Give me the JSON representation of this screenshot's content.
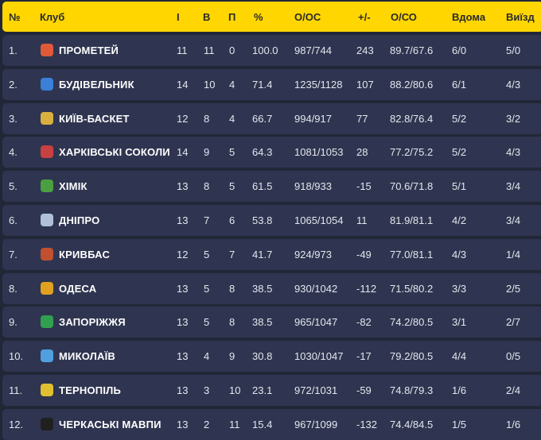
{
  "header": {
    "pos": "№",
    "club": "Клуб",
    "games": "І",
    "wins": "В",
    "losses": "П",
    "pct": "%",
    "points": "О/ОС",
    "diff": "+/-",
    "avg": "О/СО",
    "home": "Вдома",
    "away": "Виїзд"
  },
  "colors": {
    "header_bg": "#ffd600",
    "row_bg": "#2f3550",
    "page_bg": "#222737"
  },
  "rows": [
    {
      "pos": "1.",
      "club": "ПРОМЕТЕЙ",
      "games": "11",
      "wins": "11",
      "losses": "0",
      "pct": "100.0",
      "points": "987/744",
      "diff": "243",
      "avg": "89.7/67.6",
      "home": "6/0",
      "away": "5/0",
      "logo_color": "#e05a3a"
    },
    {
      "pos": "2.",
      "club": "БУДІВЕЛЬНИК",
      "games": "14",
      "wins": "10",
      "losses": "4",
      "pct": "71.4",
      "points": "1235/1128",
      "diff": "107",
      "avg": "88.2/80.6",
      "home": "6/1",
      "away": "4/3",
      "logo_color": "#3a7fd8"
    },
    {
      "pos": "3.",
      "club": "КИЇВ-БАСКЕТ",
      "games": "12",
      "wins": "8",
      "losses": "4",
      "pct": "66.7",
      "points": "994/917",
      "diff": "77",
      "avg": "82.8/76.4",
      "home": "5/2",
      "away": "3/2",
      "logo_color": "#d8b040"
    },
    {
      "pos": "4.",
      "club": "ХАРКІВСЬКІ СОКОЛИ",
      "games": "14",
      "wins": "9",
      "losses": "5",
      "pct": "64.3",
      "points": "1081/1053",
      "diff": "28",
      "avg": "77.2/75.2",
      "home": "5/2",
      "away": "4/3",
      "logo_color": "#c84040"
    },
    {
      "pos": "5.",
      "club": "ХІМІК",
      "games": "13",
      "wins": "8",
      "losses": "5",
      "pct": "61.5",
      "points": "918/933",
      "diff": "-15",
      "avg": "70.6/71.8",
      "home": "5/1",
      "away": "3/4",
      "logo_color": "#4aa040"
    },
    {
      "pos": "6.",
      "club": "ДНІПРО",
      "games": "13",
      "wins": "7",
      "losses": "6",
      "pct": "53.8",
      "points": "1065/1054",
      "diff": "11",
      "avg": "81.9/81.1",
      "home": "4/2",
      "away": "3/4",
      "logo_color": "#b0c0d8"
    },
    {
      "pos": "7.",
      "club": "КРИВБАС",
      "games": "12",
      "wins": "5",
      "losses": "7",
      "pct": "41.7",
      "points": "924/973",
      "diff": "-49",
      "avg": "77.0/81.1",
      "home": "4/3",
      "away": "1/4",
      "logo_color": "#c05030"
    },
    {
      "pos": "8.",
      "club": "ОДЕСА",
      "games": "13",
      "wins": "5",
      "losses": "8",
      "pct": "38.5",
      "points": "930/1042",
      "diff": "-112",
      "avg": "71.5/80.2",
      "home": "3/3",
      "away": "2/5",
      "logo_color": "#e0a020"
    },
    {
      "pos": "9.",
      "club": "ЗАПОРІЖЖЯ",
      "games": "13",
      "wins": "5",
      "losses": "8",
      "pct": "38.5",
      "points": "965/1047",
      "diff": "-82",
      "avg": "74.2/80.5",
      "home": "3/1",
      "away": "2/7",
      "logo_color": "#30a050"
    },
    {
      "pos": "10.",
      "club": "МИКОЛАЇВ",
      "games": "13",
      "wins": "4",
      "losses": "9",
      "pct": "30.8",
      "points": "1030/1047",
      "diff": "-17",
      "avg": "79.2/80.5",
      "home": "4/4",
      "away": "0/5",
      "logo_color": "#50a0e0"
    },
    {
      "pos": "11.",
      "club": "ТЕРНОПІЛЬ",
      "games": "13",
      "wins": "3",
      "losses": "10",
      "pct": "23.1",
      "points": "972/1031",
      "diff": "-59",
      "avg": "74.8/79.3",
      "home": "1/6",
      "away": "2/4",
      "logo_color": "#e0c030"
    },
    {
      "pos": "12.",
      "club": "ЧЕРКАСЬКІ МАВПИ",
      "games": "13",
      "wins": "2",
      "losses": "11",
      "pct": "15.4",
      "points": "967/1099",
      "diff": "-132",
      "avg": "74.4/84.5",
      "home": "1/5",
      "away": "1/6",
      "logo_color": "#202020"
    }
  ]
}
